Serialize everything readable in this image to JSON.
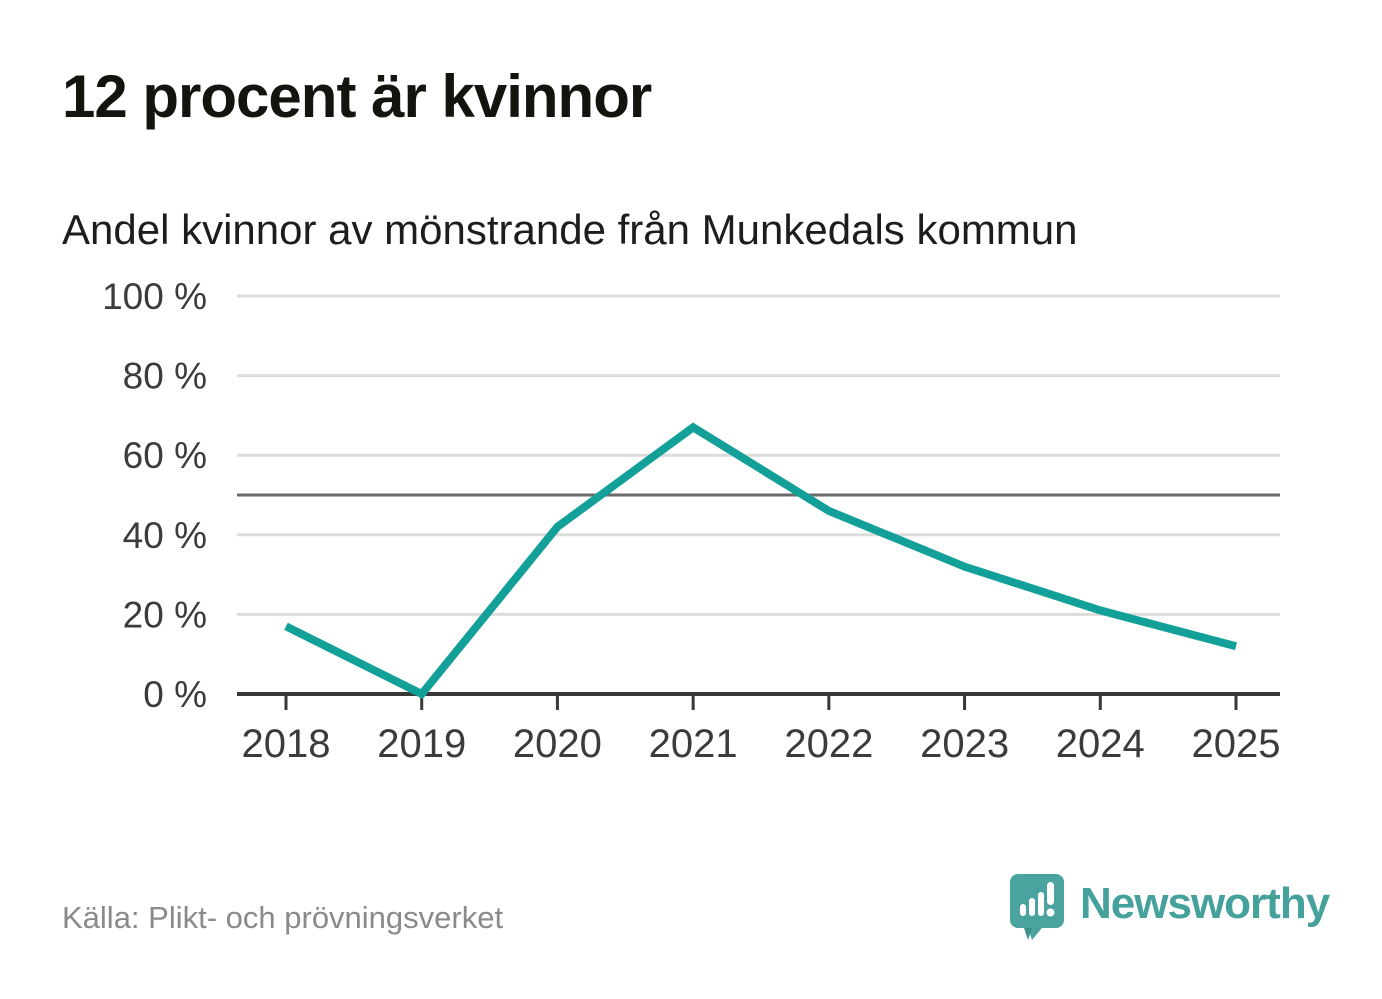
{
  "chart_data": {
    "type": "line",
    "title": "12 procent är kvinnor",
    "subtitle": "Andel kvinnor av mönstrande från Munkedals kommun",
    "x": [
      "2018",
      "2019",
      "2020",
      "2021",
      "2022",
      "2023",
      "2024",
      "2025"
    ],
    "series": [
      {
        "name": "Andel kvinnor av mönstrande",
        "values": [
          17,
          0,
          42,
          67,
          46,
          32,
          21,
          12
        ]
      }
    ],
    "unit": "%",
    "ylim": [
      0,
      100
    ],
    "y_ticks": [
      0,
      20,
      40,
      60,
      80,
      100
    ],
    "y_tick_labels": [
      "0 %",
      "20 %",
      "40 %",
      "60 %",
      "80 %",
      "100 %"
    ],
    "reference_line": 50,
    "grid": true,
    "legend": "none",
    "colors": {
      "line": "#13a099",
      "gridline": "#dcdcdc",
      "reference_line": "#6a6a6a",
      "axis": "#383838",
      "tick_label": "#3b3b3b"
    }
  },
  "footer": {
    "source": "Källa: Plikt- och prövningsverket",
    "brand": "Newsworthy",
    "brand_color": "#44a19c",
    "logo_icon": "speech-bubble-bar-chart-exclamation"
  }
}
